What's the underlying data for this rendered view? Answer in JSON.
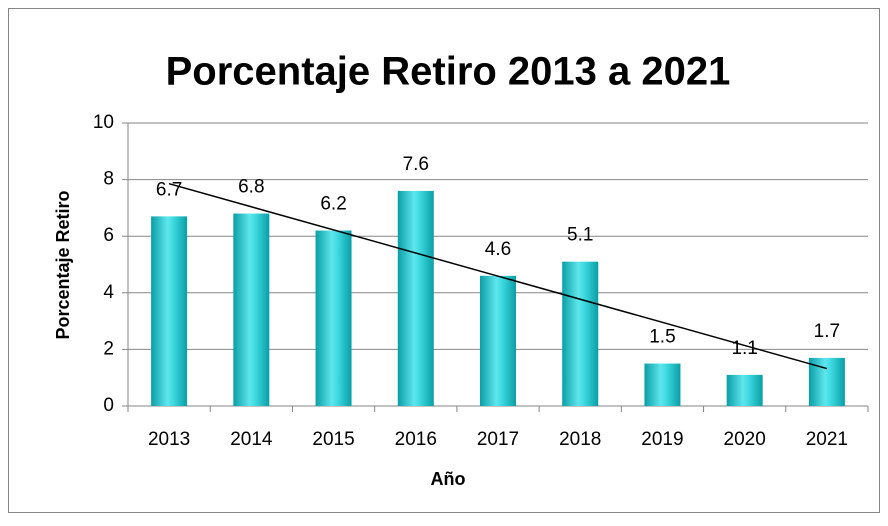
{
  "chart_data": {
    "type": "bar",
    "title": "Porcentaje  Retiro 2013 a 2021",
    "x_label": "Año",
    "y_label": "Porcentaje Retiro",
    "categories": [
      "2013",
      "2014",
      "2015",
      "2016",
      "2017",
      "2018",
      "2019",
      "2020",
      "2021"
    ],
    "values": [
      6.7,
      6.8,
      6.2,
      7.6,
      4.6,
      5.1,
      1.5,
      1.1,
      1.7
    ],
    "color": "#1ec8d0",
    "ylim": [
      0,
      10
    ],
    "yticks": [
      0,
      2,
      4,
      6,
      8,
      10
    ],
    "grid": true,
    "trendline": "linear"
  }
}
